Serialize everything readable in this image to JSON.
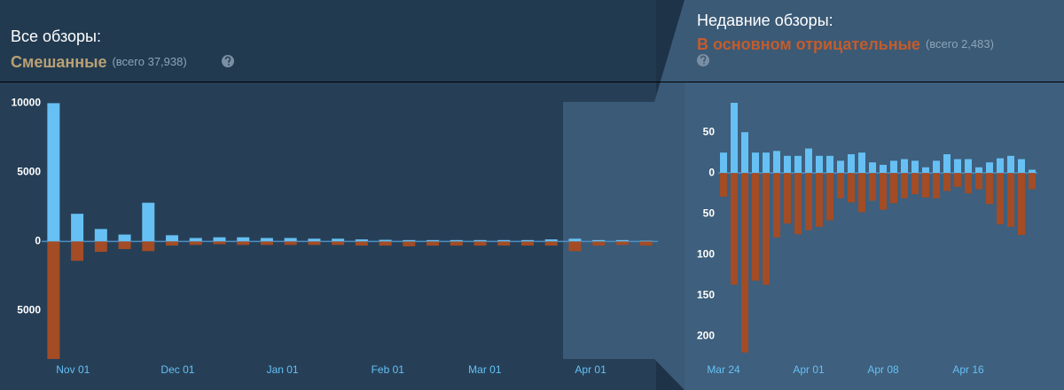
{
  "chart_data": [
    {
      "type": "bar",
      "title": "Все обзоры:",
      "rating": "Смешанные",
      "total_label": "(всего 37,938)",
      "categories": [
        null,
        null,
        null,
        null,
        null,
        null,
        null,
        null,
        null,
        null,
        null,
        null,
        null,
        null,
        null,
        null,
        null,
        null,
        null,
        null,
        null,
        null,
        null,
        null,
        null,
        null
      ],
      "series": [
        {
          "color": "#66c0f4",
          "values": [
            10000,
            2000,
            900,
            500,
            2800,
            450,
            250,
            300,
            300,
            250,
            250,
            200,
            200,
            150,
            120,
            100,
            100,
            100,
            100,
            100,
            100,
            150,
            200,
            100,
            100,
            50
          ]
        },
        {
          "color": "#a34c25",
          "values": [
            -8500,
            -1400,
            -750,
            -550,
            -700,
            -300,
            -250,
            -200,
            -250,
            -250,
            -250,
            -250,
            -250,
            -300,
            -300,
            -350,
            -300,
            -300,
            -300,
            -300,
            -300,
            -300,
            -700,
            -300,
            -250,
            -300
          ]
        }
      ],
      "xlim": [
        -0.5,
        25.5
      ],
      "xticks": [
        {
          "value": 0.82,
          "label": "Nov 01"
        },
        {
          "value": 5.24,
          "label": "Dec 01"
        },
        {
          "value": 9.66,
          "label": "Jan 01"
        },
        {
          "value": 14.1,
          "label": "Feb 01"
        },
        {
          "value": 18.2,
          "label": "Mar 01"
        },
        {
          "value": 22.66,
          "label": "Apr 01"
        }
      ],
      "ylim": [
        -8500,
        11500
      ],
      "yticks": [
        10000,
        5000,
        0,
        {
          "value": -5000,
          "label": "5000"
        }
      ],
      "highlight_range": [
        21.5,
        25.5
      ],
      "grid": false
    },
    {
      "type": "bar",
      "title": "Недавние обзоры:",
      "rating": "В основном отрицательные",
      "total_label": "(всего 2,483)",
      "categories": [
        "Mar 24",
        null,
        null,
        null,
        null,
        null,
        null,
        null,
        "Apr 01",
        null,
        null,
        null,
        null,
        null,
        null,
        "Apr 08",
        null,
        null,
        null,
        null,
        null,
        null,
        null,
        "Apr 16",
        null,
        null,
        null,
        null,
        null,
        null
      ],
      "series": [
        {
          "color": "#66c0f4",
          "values": [
            25,
            86,
            50,
            25,
            25,
            27,
            21,
            21,
            30,
            21,
            21,
            15,
            23,
            25,
            13,
            10,
            15,
            17,
            15,
            7,
            15,
            23,
            17,
            17,
            7,
            13,
            18,
            21,
            17,
            4
          ]
        },
        {
          "color": "#a34c25",
          "values": [
            -29,
            -137,
            -220,
            -132,
            -137,
            -79,
            -62,
            -75,
            -70,
            -66,
            -58,
            -31,
            -36,
            -48,
            -34,
            -45,
            -37,
            -31,
            -26,
            -30,
            -31,
            -22,
            -17,
            -25,
            -20,
            -38,
            -63,
            -66,
            -76,
            -20
          ]
        }
      ],
      "xlim": [
        -0.5,
        29.5
      ],
      "ylim": [
        -228,
        111
      ],
      "yticks": [
        50,
        0,
        {
          "value": -50,
          "label": "50"
        },
        {
          "value": -100,
          "label": "100"
        },
        {
          "value": -150,
          "label": "150"
        },
        {
          "value": -200,
          "label": "200"
        }
      ],
      "grid": false
    }
  ]
}
